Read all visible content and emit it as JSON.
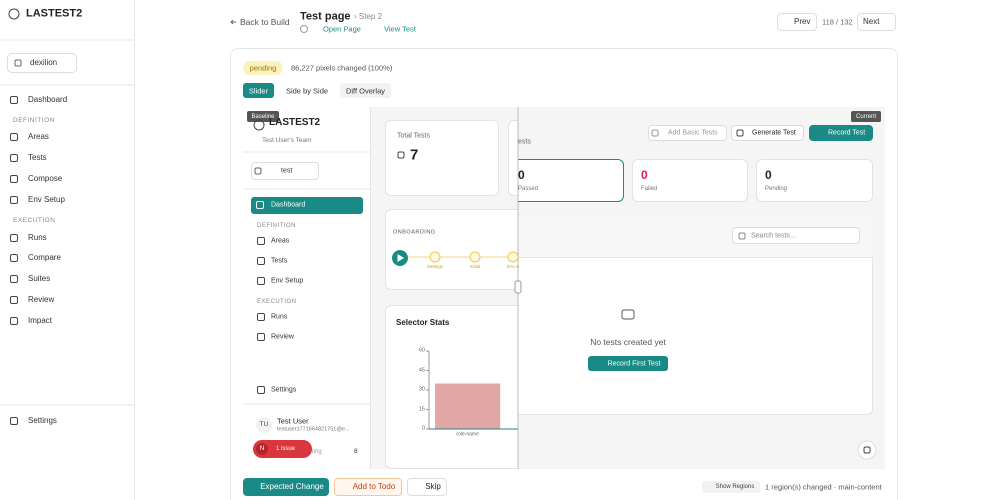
{
  "sidebar": {
    "brand": "LASTEST2",
    "team": "dexilion",
    "dashboard": "Dashboard",
    "definition": {
      "heading": "DEFINITION",
      "items": [
        "Areas",
        "Tests",
        "Compose",
        "Env Setup"
      ]
    },
    "execution": {
      "heading": "EXECUTION",
      "items": [
        "Runs",
        "Compare",
        "Suites",
        "Review",
        "Impact"
      ]
    },
    "settings": "Settings"
  },
  "header": {
    "back": "Back to Build",
    "title": "Test page",
    "step": "› Step 2",
    "open_page": "Open Page",
    "view_test": "View Test",
    "prev": "Prev",
    "counter": "118 / 132",
    "next": "Next"
  },
  "review": {
    "status": "pending",
    "pixels_changed": "86,227 pixels changed (100%)",
    "tabs": [
      "Slider",
      "Side by Side",
      "Diff Overlay"
    ]
  },
  "baseline": {
    "tag": "Baseline",
    "brand": "LASTEST2",
    "team": "Test User's Team",
    "project": "test",
    "dashboard": "Dashboard",
    "definition": {
      "heading": "DEFINITION",
      "items": [
        "Areas",
        "Tests",
        "Env Setup"
      ]
    },
    "execution": {
      "heading": "EXECUTION",
      "items": [
        "Runs",
        "Review"
      ]
    },
    "settings": "Settings",
    "user": {
      "initials": "TU",
      "name": "Test User",
      "email": "testuser1771664821751@e..."
    },
    "issue_badge": {
      "icon": "N",
      "label": "1 issue"
    },
    "footer_text": "ting",
    "footer_count": "8",
    "total_tests": {
      "label": "Total Tests",
      "value": 7
    },
    "onboarding": {
      "heading": "ONBOARDING",
      "steps": [
        "Settings",
        "Initial",
        "Env S"
      ]
    },
    "selector_stats": {
      "title": "Selector Stats",
      "categories": [
        "role-name"
      ],
      "values": [
        35
      ],
      "ylim": [
        0,
        60
      ],
      "yticks": [
        0,
        15,
        30,
        45,
        60
      ],
      "color": "#e2a7a5"
    }
  },
  "current": {
    "tag": "Current",
    "buttons": [
      "Add Basic Tests",
      "Generate Test",
      "Record Test"
    ],
    "heading": "ests",
    "stats": [
      {
        "value": 0,
        "label": "Passed"
      },
      {
        "value": 0,
        "label": "Failed"
      },
      {
        "value": 0,
        "label": "Pending"
      }
    ],
    "search": "Search tests...",
    "empty": "No tests created yet",
    "cta": "Record First Test"
  },
  "actions": {
    "expected": "Expected Change",
    "todo": "Add to Todo",
    "skip": "Skip",
    "show_regions": "Show Regions",
    "regions": "1 region(s) changed · main-content"
  }
}
